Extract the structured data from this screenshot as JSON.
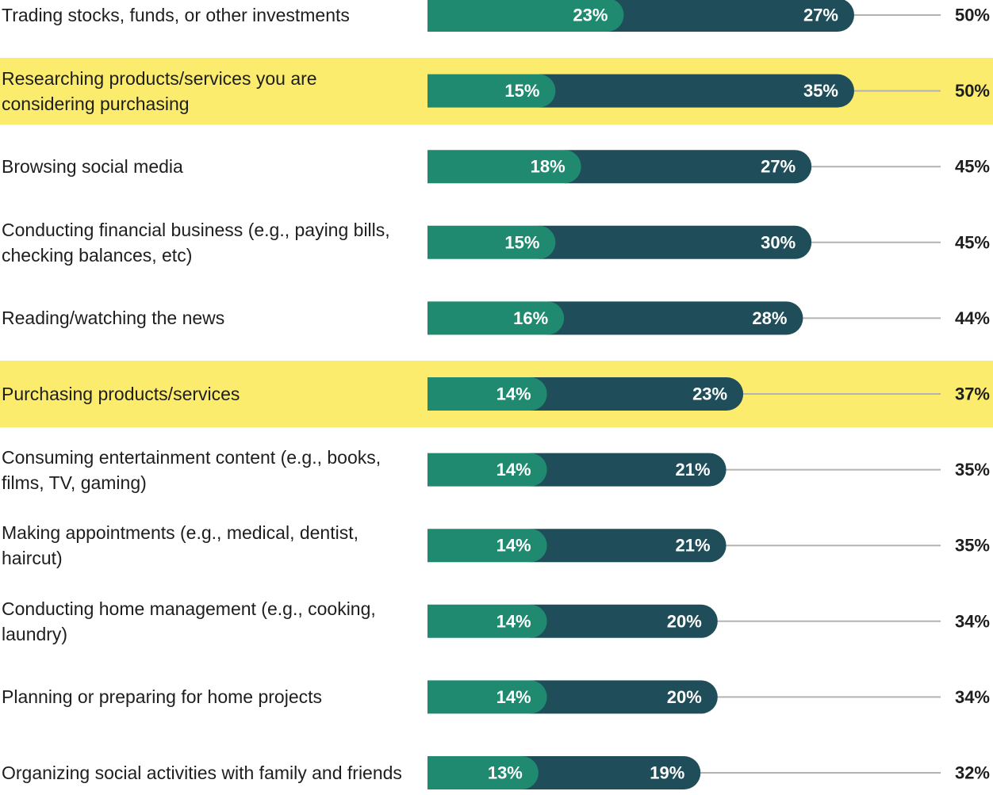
{
  "chart_data": {
    "type": "bar",
    "orientation": "horizontal",
    "stacked": true,
    "categories": [
      "Trading stocks, funds, or other investments",
      "Researching products/services you are considering purchasing",
      "Browsing social media",
      "Conducting financial business (e.g., paying bills, checking balances, etc)",
      "Reading/watching the news",
      "Purchasing products/services",
      "Consuming entertainment content (e.g., books, films, TV, gaming)",
      "Making appointments (e.g., medical, dentist, haircut)",
      "Conducting home management (e.g., cooking, laundry)",
      "Planning or preparing for home projects",
      "Organizing social activities with family and friends"
    ],
    "series": [
      {
        "color": "#1f8a70",
        "values": [
          23,
          15,
          18,
          15,
          16,
          14,
          14,
          14,
          14,
          14,
          13
        ],
        "value_labels": [
          "23%",
          "15%",
          "18%",
          "15%",
          "16%",
          "14%",
          "14%",
          "14%",
          "14%",
          "14%",
          "13%"
        ]
      },
      {
        "color": "#1f4e5a",
        "values": [
          27,
          35,
          27,
          30,
          28,
          23,
          21,
          21,
          20,
          20,
          19
        ],
        "value_labels": [
          "27%",
          "35%",
          "27%",
          "30%",
          "28%",
          "23%",
          "21%",
          "21%",
          "20%",
          "20%",
          "19%"
        ]
      }
    ],
    "totals": [
      50,
      50,
      45,
      45,
      44,
      37,
      35,
      35,
      34,
      34,
      32
    ],
    "total_labels": [
      "50%",
      "50%",
      "45%",
      "45%",
      "44%",
      "37%",
      "35%",
      "35%",
      "34%",
      "34%",
      "32%"
    ],
    "xlim": [
      0,
      50
    ],
    "highlight": [
      1,
      5
    ],
    "highlight_color": "#fbec6e"
  }
}
